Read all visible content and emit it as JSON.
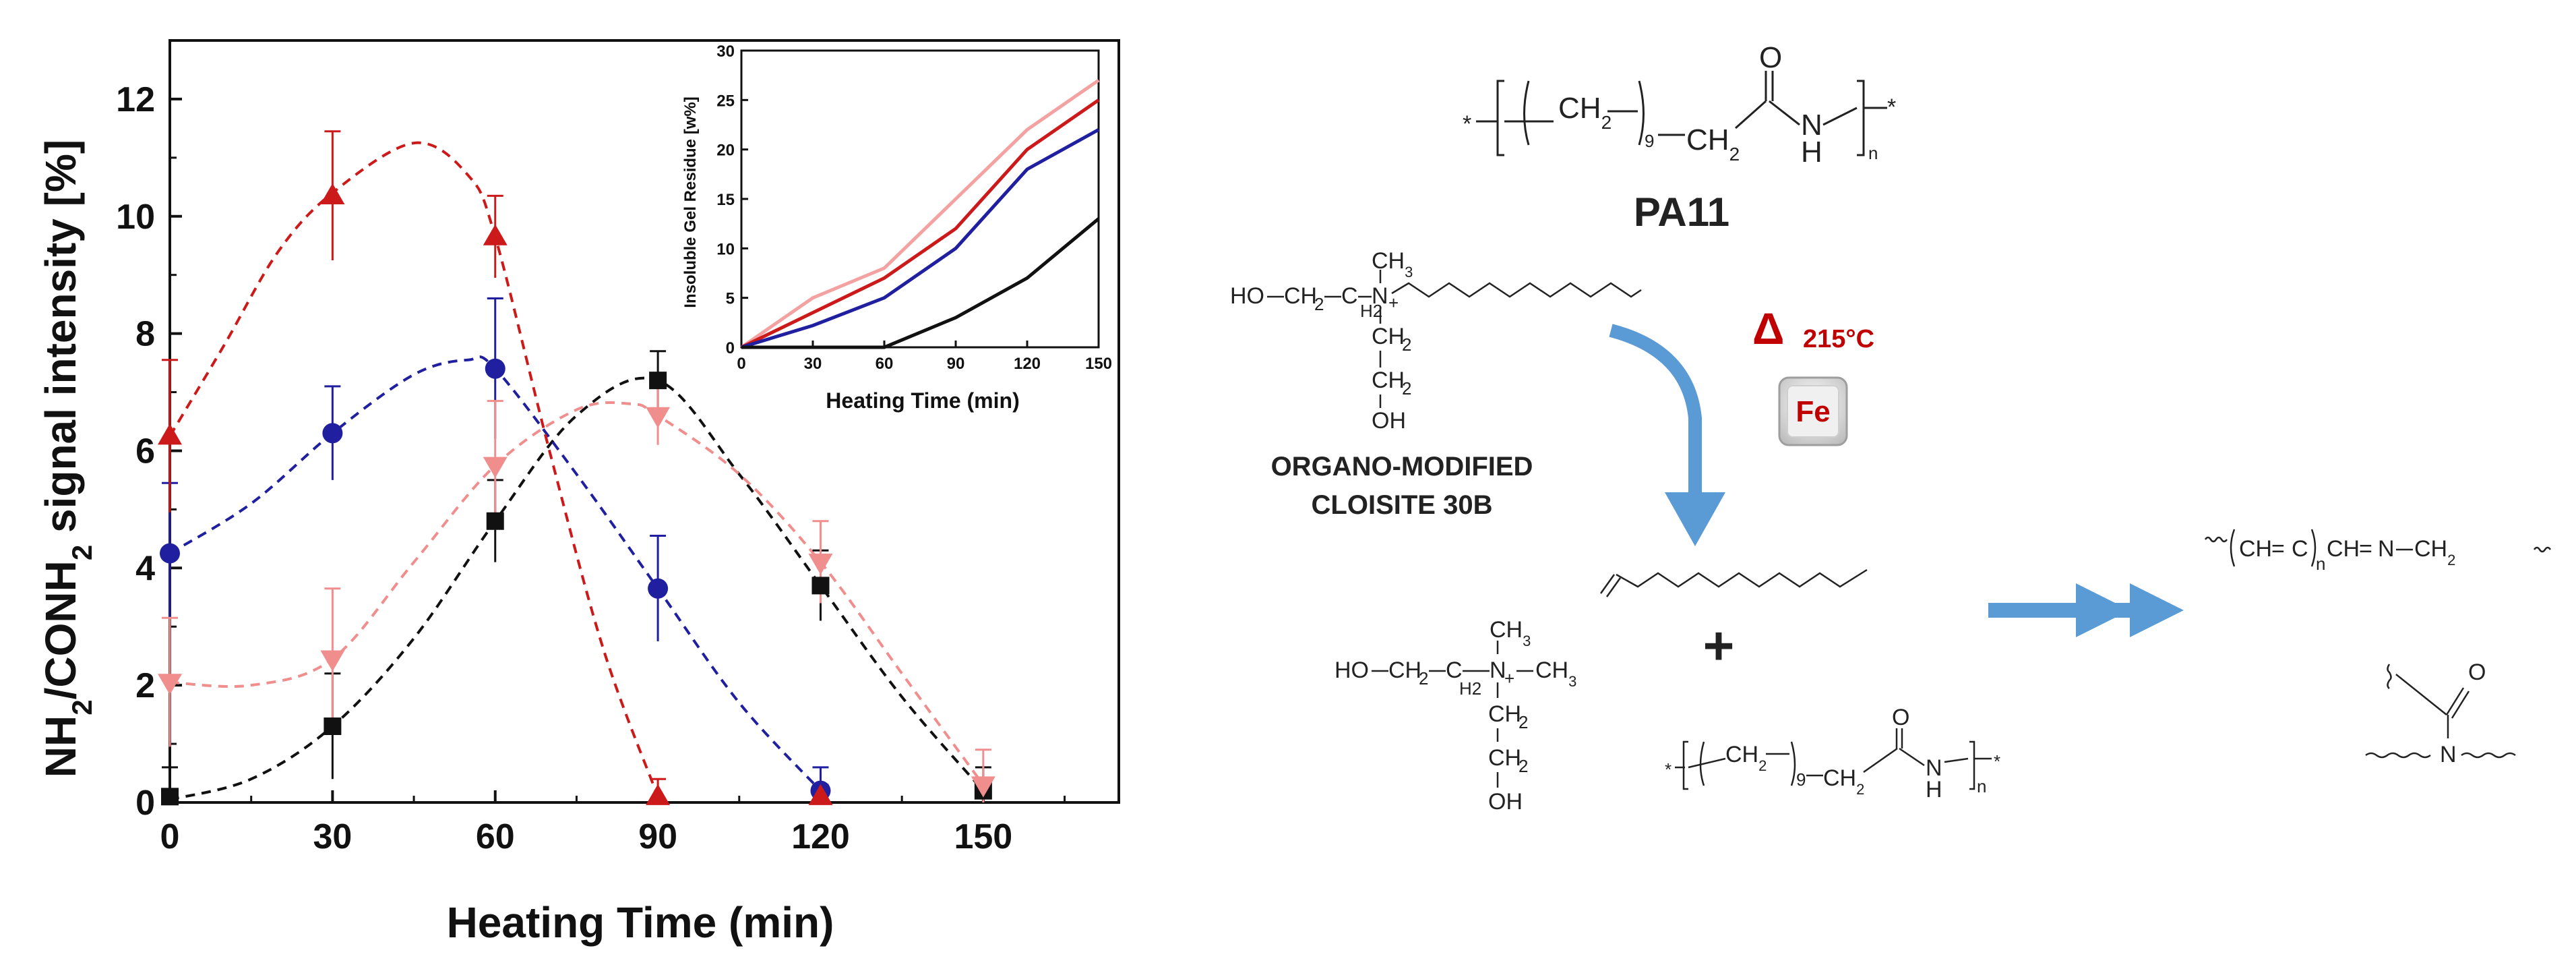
{
  "chart_data": [
    {
      "type": "scatter",
      "xlabel": "Heating Time (min)",
      "ylabel": "NH2/CONH2 signal intensity [%]",
      "ylabel_main": "NH",
      "ylabel_sub1": "2",
      "ylabel_mid": "/CONH",
      "ylabel_sub2": "2",
      "ylabel_tail": " signal intensity [%]",
      "xlim": [
        0,
        175
      ],
      "ylim": [
        0,
        13
      ],
      "x_ticks": [
        0,
        30,
        60,
        90,
        120,
        150
      ],
      "y_ticks": [
        0,
        2,
        4,
        6,
        8,
        10,
        12
      ],
      "x_tick_labels": [
        "0",
        "30",
        "60",
        "90",
        "120",
        "150"
      ],
      "y_tick_labels": [
        "0",
        "2",
        "4",
        "6",
        "8",
        "10",
        "12"
      ],
      "fit": "dashed smooth curve",
      "series": [
        {
          "marker": "square",
          "color": "#111111",
          "x": [
            0,
            30,
            60,
            90,
            120,
            150
          ],
          "y": [
            0.1,
            1.3,
            4.8,
            7.2,
            3.7,
            0.2
          ],
          "err": [
            0.5,
            0.9,
            0.7,
            0.5,
            0.6,
            0.4
          ],
          "curve": [
            [
              0,
              0.05
            ],
            [
              15,
              0.4
            ],
            [
              30,
              1.3
            ],
            [
              45,
              2.8
            ],
            [
              60,
              4.8
            ],
            [
              75,
              6.6
            ],
            [
              90,
              7.2
            ],
            [
              105,
              5.6
            ],
            [
              120,
              3.7
            ],
            [
              135,
              1.8
            ],
            [
              150,
              0.2
            ]
          ]
        },
        {
          "marker": "circle",
          "color": "#1f1fa0",
          "x": [
            0,
            30,
            60,
            90,
            120
          ],
          "y": [
            4.25,
            6.3,
            7.4,
            3.65,
            0.2
          ],
          "err": [
            1.2,
            0.8,
            1.2,
            0.9,
            0.4
          ],
          "curve": [
            [
              0,
              4.25
            ],
            [
              15,
              5.1
            ],
            [
              30,
              6.3
            ],
            [
              45,
              7.3
            ],
            [
              55,
              7.55
            ],
            [
              60,
              7.4
            ],
            [
              75,
              5.6
            ],
            [
              90,
              3.65
            ],
            [
              105,
              1.7
            ],
            [
              120,
              0.2
            ]
          ]
        },
        {
          "marker": "triangle-up",
          "color": "#cc1a1a",
          "x": [
            0,
            30,
            60,
            90,
            120
          ],
          "y": [
            6.25,
            10.35,
            9.65,
            0.1,
            0.1
          ],
          "err": [
            1.3,
            1.1,
            0.7,
            0.3,
            0.2
          ],
          "curve": [
            [
              0,
              6.25
            ],
            [
              10,
              7.8
            ],
            [
              20,
              9.4
            ],
            [
              30,
              10.4
            ],
            [
              45,
              11.25
            ],
            [
              55,
              10.7
            ],
            [
              60,
              9.65
            ],
            [
              70,
              6.0
            ],
            [
              80,
              2.6
            ],
            [
              90,
              0.1
            ]
          ]
        },
        {
          "marker": "triangle-down",
          "color": "#f08e8e",
          "x": [
            0,
            30,
            60,
            90,
            120,
            150
          ],
          "y": [
            2.05,
            2.45,
            5.75,
            6.6,
            4.1,
            0.3
          ],
          "err": [
            1.1,
            1.2,
            1.1,
            0.5,
            0.7,
            0.6
          ],
          "curve": [
            [
              0,
              2.05
            ],
            [
              15,
              2.0
            ],
            [
              30,
              2.45
            ],
            [
              45,
              4.1
            ],
            [
              60,
              5.75
            ],
            [
              75,
              6.7
            ],
            [
              85,
              6.8
            ],
            [
              90,
              6.6
            ],
            [
              105,
              5.6
            ],
            [
              120,
              4.1
            ],
            [
              135,
              2.2
            ],
            [
              150,
              0.3
            ]
          ]
        }
      ]
    },
    {
      "type": "line",
      "xlabel": "Heating Time (min)",
      "ylabel": "Insoluble Gel Residue [w%]",
      "xlim": [
        0,
        150
      ],
      "ylim": [
        0,
        30
      ],
      "x_ticks": [
        0,
        30,
        60,
        90,
        120,
        150
      ],
      "y_ticks": [
        0,
        5,
        10,
        15,
        20,
        25,
        30
      ],
      "x_tick_labels": [
        "0",
        "30",
        "60",
        "90",
        "120",
        "150"
      ],
      "y_tick_labels": [
        "0",
        "5",
        "10",
        "15",
        "20",
        "25",
        "30"
      ],
      "series": [
        {
          "color": "#f4a1a1",
          "x": [
            0,
            30,
            60,
            90,
            120,
            150
          ],
          "y": [
            0,
            5,
            8,
            15,
            22,
            27
          ]
        },
        {
          "color": "#cc1a1a",
          "x": [
            0,
            30,
            60,
            90,
            120,
            150
          ],
          "y": [
            0,
            3.5,
            7,
            12,
            20,
            25
          ]
        },
        {
          "color": "#1f1fa0",
          "x": [
            0,
            30,
            60,
            90,
            120,
            150
          ],
          "y": [
            0,
            2.2,
            5,
            10,
            18,
            22
          ]
        },
        {
          "color": "#111111",
          "x": [
            0,
            30,
            60,
            90,
            120,
            150
          ],
          "y": [
            0,
            0,
            0,
            3,
            7,
            13
          ]
        }
      ]
    }
  ],
  "scheme": {
    "polymer_name": "PA11",
    "ch2": "CH",
    "sub_2": "2",
    "sub_9": "9",
    "sub_n": "n",
    "star": "*",
    "atom_O": "O",
    "atom_N": "N",
    "atom_H": "H",
    "atom_ho": "HO",
    "atom_oh": "OH",
    "atom_ch3": "CH",
    "sub_3": "3",
    "plus_sign": "+",
    "delta": "Δ",
    "temperature": "215°C",
    "iron_symbol": "Fe",
    "clay_line1": "ORGANO-MODIFIED",
    "clay_line2": "CLOISITE 30B",
    "product_plus": "+",
    "product_seg1": "CH",
    "product_seg2": "C",
    "product_seg3": "CH",
    "product_seg4": "N",
    "product_seg5": "CH",
    "product_eq1": "=",
    "product_eq2": "="
  }
}
